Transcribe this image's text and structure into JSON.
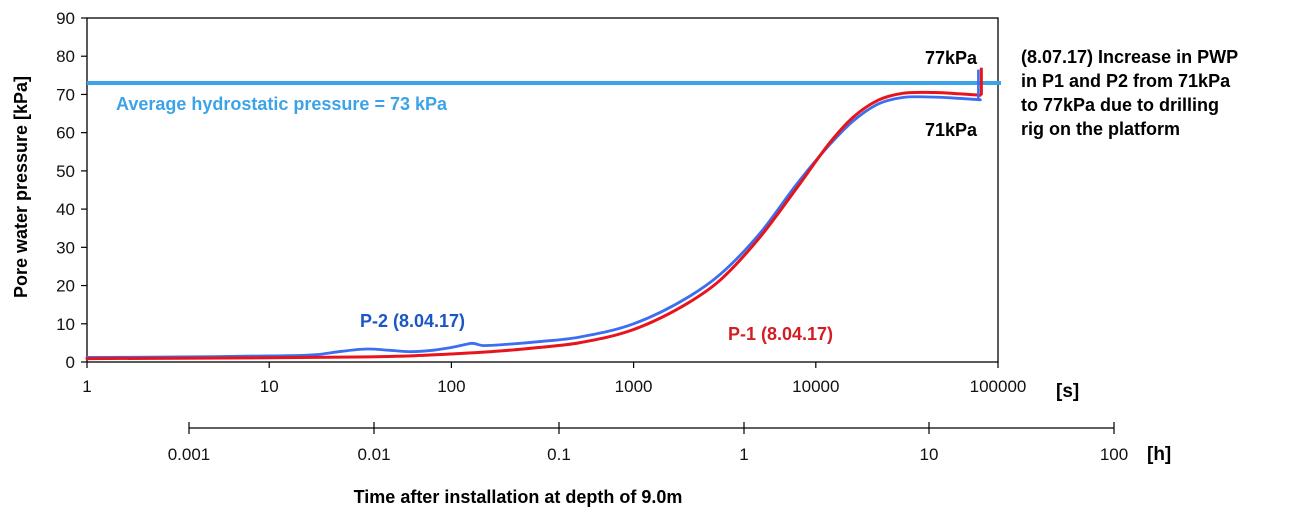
{
  "chart_data": {
    "type": "line",
    "x_scale": "log",
    "xlim": [
      1,
      100000
    ],
    "ylim": [
      0,
      90
    ],
    "xlabel": "Time after installation at depth of 9.0m",
    "ylabel": "Pore water pressure [kPa]",
    "x_unit": "[s]",
    "secondary_x_unit": "[h]",
    "x_ticks": [
      1,
      10,
      100,
      1000,
      10000,
      100000
    ],
    "x_tick_labels": [
      "1",
      "10",
      "100",
      "1000",
      "10000",
      "100000"
    ],
    "y_ticks": [
      0,
      10,
      20,
      30,
      40,
      50,
      60,
      70,
      80,
      90
    ],
    "y_tick_labels": [
      "0",
      "10",
      "20",
      "30",
      "40",
      "50",
      "60",
      "70",
      "80",
      "90"
    ],
    "secondary_x_ticks": [
      0.001,
      0.01,
      0.1,
      1,
      10,
      100
    ],
    "secondary_x_tick_labels": [
      "0.001",
      "0.01",
      "0.1",
      "1",
      "10",
      "100"
    ],
    "grid": false,
    "reference_line": {
      "y": 73,
      "label": "Average hydrostatic pressure = 73 kPa",
      "color": "#3da3e8"
    },
    "series": [
      {
        "name": "P-2 (8.04.17)",
        "color": "#3b6ef0",
        "label_color": "#1a56c4",
        "x": [
          1,
          5,
          10,
          18,
          25,
          35,
          45,
          60,
          80,
          100,
          120,
          130,
          150,
          200,
          300,
          500,
          1000,
          2000,
          3000,
          5000,
          8000,
          12000,
          16000,
          22000,
          30000,
          45000,
          60000,
          80000
        ],
        "y": [
          1.2,
          1.4,
          1.6,
          1.9,
          2.8,
          3.4,
          3.1,
          2.7,
          3.1,
          3.8,
          4.6,
          4.9,
          4.3,
          4.6,
          5.3,
          6.5,
          10,
          17,
          23,
          34,
          47,
          57,
          63,
          67.5,
          69.2,
          69.3,
          69,
          68.6
        ]
      },
      {
        "name": "P-1 (8.04.17)",
        "color": "#e8141c",
        "label_color": "#d41c24",
        "x": [
          1,
          10,
          30,
          60,
          100,
          200,
          300,
          500,
          1000,
          2000,
          3000,
          5000,
          8000,
          12000,
          16000,
          22000,
          30000,
          45000,
          60000,
          80000
        ],
        "y": [
          0.9,
          1.1,
          1.3,
          1.6,
          2.1,
          3.0,
          3.8,
          5.0,
          8.5,
          15.5,
          21.5,
          33,
          46,
          57.5,
          64,
          68.5,
          70.3,
          70.5,
          70.2,
          69.8
        ]
      }
    ],
    "annotations": {
      "top_value": "77kPa",
      "bottom_value": "71kPa",
      "note_lines": [
        "(8.07.17) Increase in PWP",
        "in P1 and P2 from 71kPa",
        "to 77kPa due to drilling",
        "rig on the platform"
      ]
    }
  }
}
